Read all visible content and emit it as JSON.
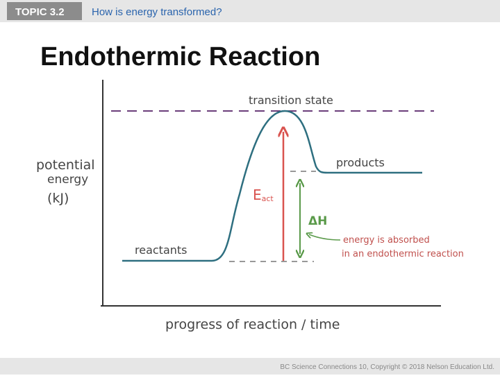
{
  "header": {
    "topic": "TOPIC 3.2",
    "question": "How is energy transformed?"
  },
  "slide": {
    "title": "Endothermic Reaction"
  },
  "diagram": {
    "y_axis_label": [
      "potential",
      "energy",
      "(kJ)"
    ],
    "x_axis_label": "progress of reaction / time",
    "labels": {
      "transition_state": "transition state",
      "products": "products",
      "reactants": "reactants",
      "eact": {
        "main": "E",
        "sub": "act"
      },
      "delta_h": "ΔH",
      "annotation": [
        "energy is absorbed",
        "in an endothermic reaction"
      ]
    }
  },
  "footer": {
    "credit": "BC Science Connections 10, Copyright © 2018 Nelson Education Ltd."
  }
}
